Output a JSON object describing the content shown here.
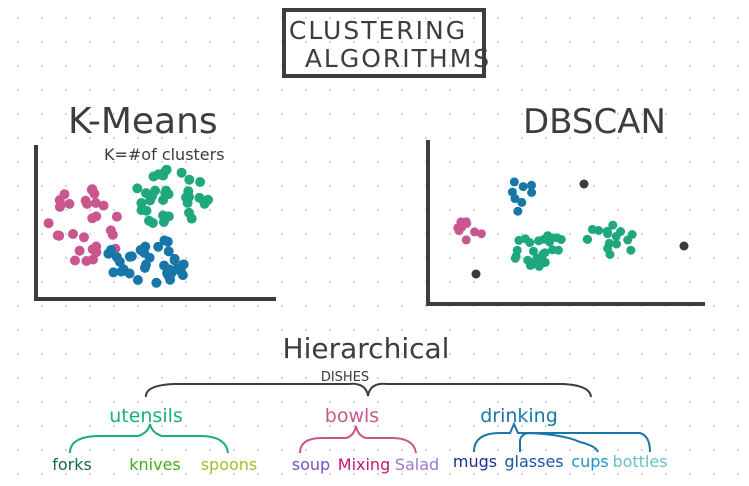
{
  "title": {
    "line1": "CLUSTERING",
    "line2": "ALGORITHMS"
  },
  "kmeans": {
    "heading": "K-Means",
    "note": "K=#of clusters",
    "colors": [
      "#c9578e",
      "#1fa77e",
      "#1877a8"
    ]
  },
  "dbscan": {
    "heading": "DBSCAN",
    "colors": [
      "#c9578e",
      "#1877a8",
      "#1fa77e",
      "#3a3a3a"
    ]
  },
  "hierarchical": {
    "heading": "Hierarchical",
    "root": "DISHES",
    "groups": [
      {
        "label": "utensils",
        "color": "#1aaf7a",
        "children": [
          {
            "label": "forks",
            "color": "#136b3e"
          },
          {
            "label": "knives",
            "color": "#4aaa1f"
          },
          {
            "label": "spoons",
            "color": "#9bc22a"
          }
        ]
      },
      {
        "label": "bowls",
        "color": "#c9578e",
        "children": [
          {
            "label": "soup",
            "color": "#7a4fc0"
          },
          {
            "label": "Mixing",
            "color": "#c2186e"
          },
          {
            "label": "Salad",
            "color": "#9a78cc"
          }
        ]
      },
      {
        "label": "drinking",
        "color": "#1877a8",
        "children": [
          {
            "label": "mugs",
            "color": "#1d2f8a"
          },
          {
            "label": "glasses",
            "color": "#1b55a8"
          },
          {
            "label": "cups",
            "color": "#1b95c8"
          },
          {
            "label": "bottles",
            "color": "#6cc0c0"
          }
        ]
      }
    ]
  }
}
